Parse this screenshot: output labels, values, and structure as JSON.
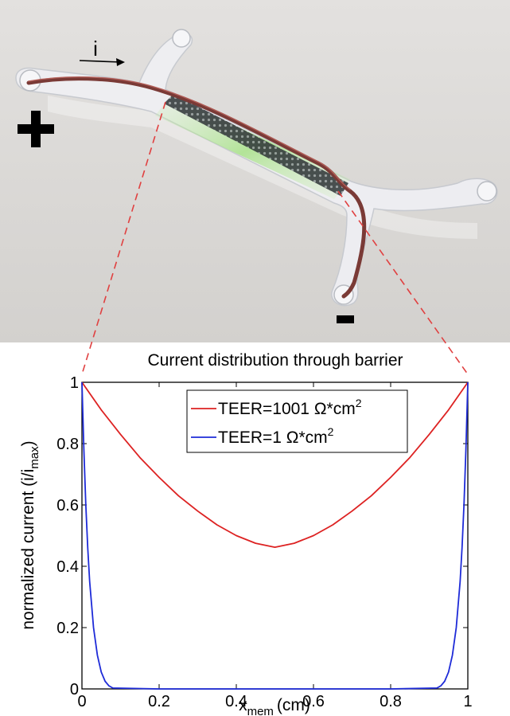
{
  "illustration": {
    "current_label": "i",
    "plus_symbol": "+",
    "minus_symbol": "-",
    "colors": {
      "background": "#d9d7d5",
      "channel": "#eeeef1",
      "wire": "#7a3a36",
      "membrane": "#31363a",
      "glow": "#aee08d",
      "guide_lines": "#e04040"
    }
  },
  "chart_data": {
    "type": "line",
    "title": "Current distribution through barrier",
    "xlabel_main": "x",
    "xlabel_sub": "mem",
    "xlabel_unit": "(cm)",
    "ylabel_main": "normalized current (i/i",
    "ylabel_sub": "max",
    "ylabel_close": ")",
    "xlim": [
      0,
      1
    ],
    "ylim": [
      0,
      1
    ],
    "xticks": [
      "0",
      "0.2",
      "0.4",
      "0.6",
      "0.8",
      "1"
    ],
    "yticks": [
      "0",
      "0.2",
      "0.4",
      "0.6",
      "0.8",
      "1"
    ],
    "legend_position": "top-center",
    "series": [
      {
        "name": "TEER=1001 Ω*cm",
        "name_sup": "2",
        "color": "#dd2222",
        "x": [
          0,
          0.05,
          0.1,
          0.15,
          0.2,
          0.25,
          0.3,
          0.35,
          0.4,
          0.45,
          0.5,
          0.55,
          0.6,
          0.65,
          0.7,
          0.75,
          0.8,
          0.85,
          0.9,
          0.95,
          1
        ],
        "y": [
          1.0,
          0.91,
          0.83,
          0.755,
          0.69,
          0.63,
          0.58,
          0.535,
          0.5,
          0.475,
          0.462,
          0.475,
          0.5,
          0.535,
          0.58,
          0.63,
          0.69,
          0.755,
          0.83,
          0.91,
          1.0
        ]
      },
      {
        "name": "TEER=1 Ω*cm",
        "name_sup": "2",
        "color": "#1e2bd8",
        "x": [
          0,
          0.005,
          0.01,
          0.015,
          0.02,
          0.03,
          0.04,
          0.05,
          0.06,
          0.07,
          0.08,
          0.2,
          0.5,
          0.8,
          0.92,
          0.93,
          0.94,
          0.95,
          0.96,
          0.97,
          0.98,
          0.985,
          0.99,
          0.995,
          1
        ],
        "y": [
          1.0,
          0.78,
          0.6,
          0.46,
          0.35,
          0.2,
          0.11,
          0.055,
          0.025,
          0.01,
          0.003,
          0.0,
          0.0,
          0.0,
          0.003,
          0.01,
          0.025,
          0.055,
          0.11,
          0.2,
          0.35,
          0.46,
          0.6,
          0.78,
          1.0
        ]
      }
    ]
  }
}
